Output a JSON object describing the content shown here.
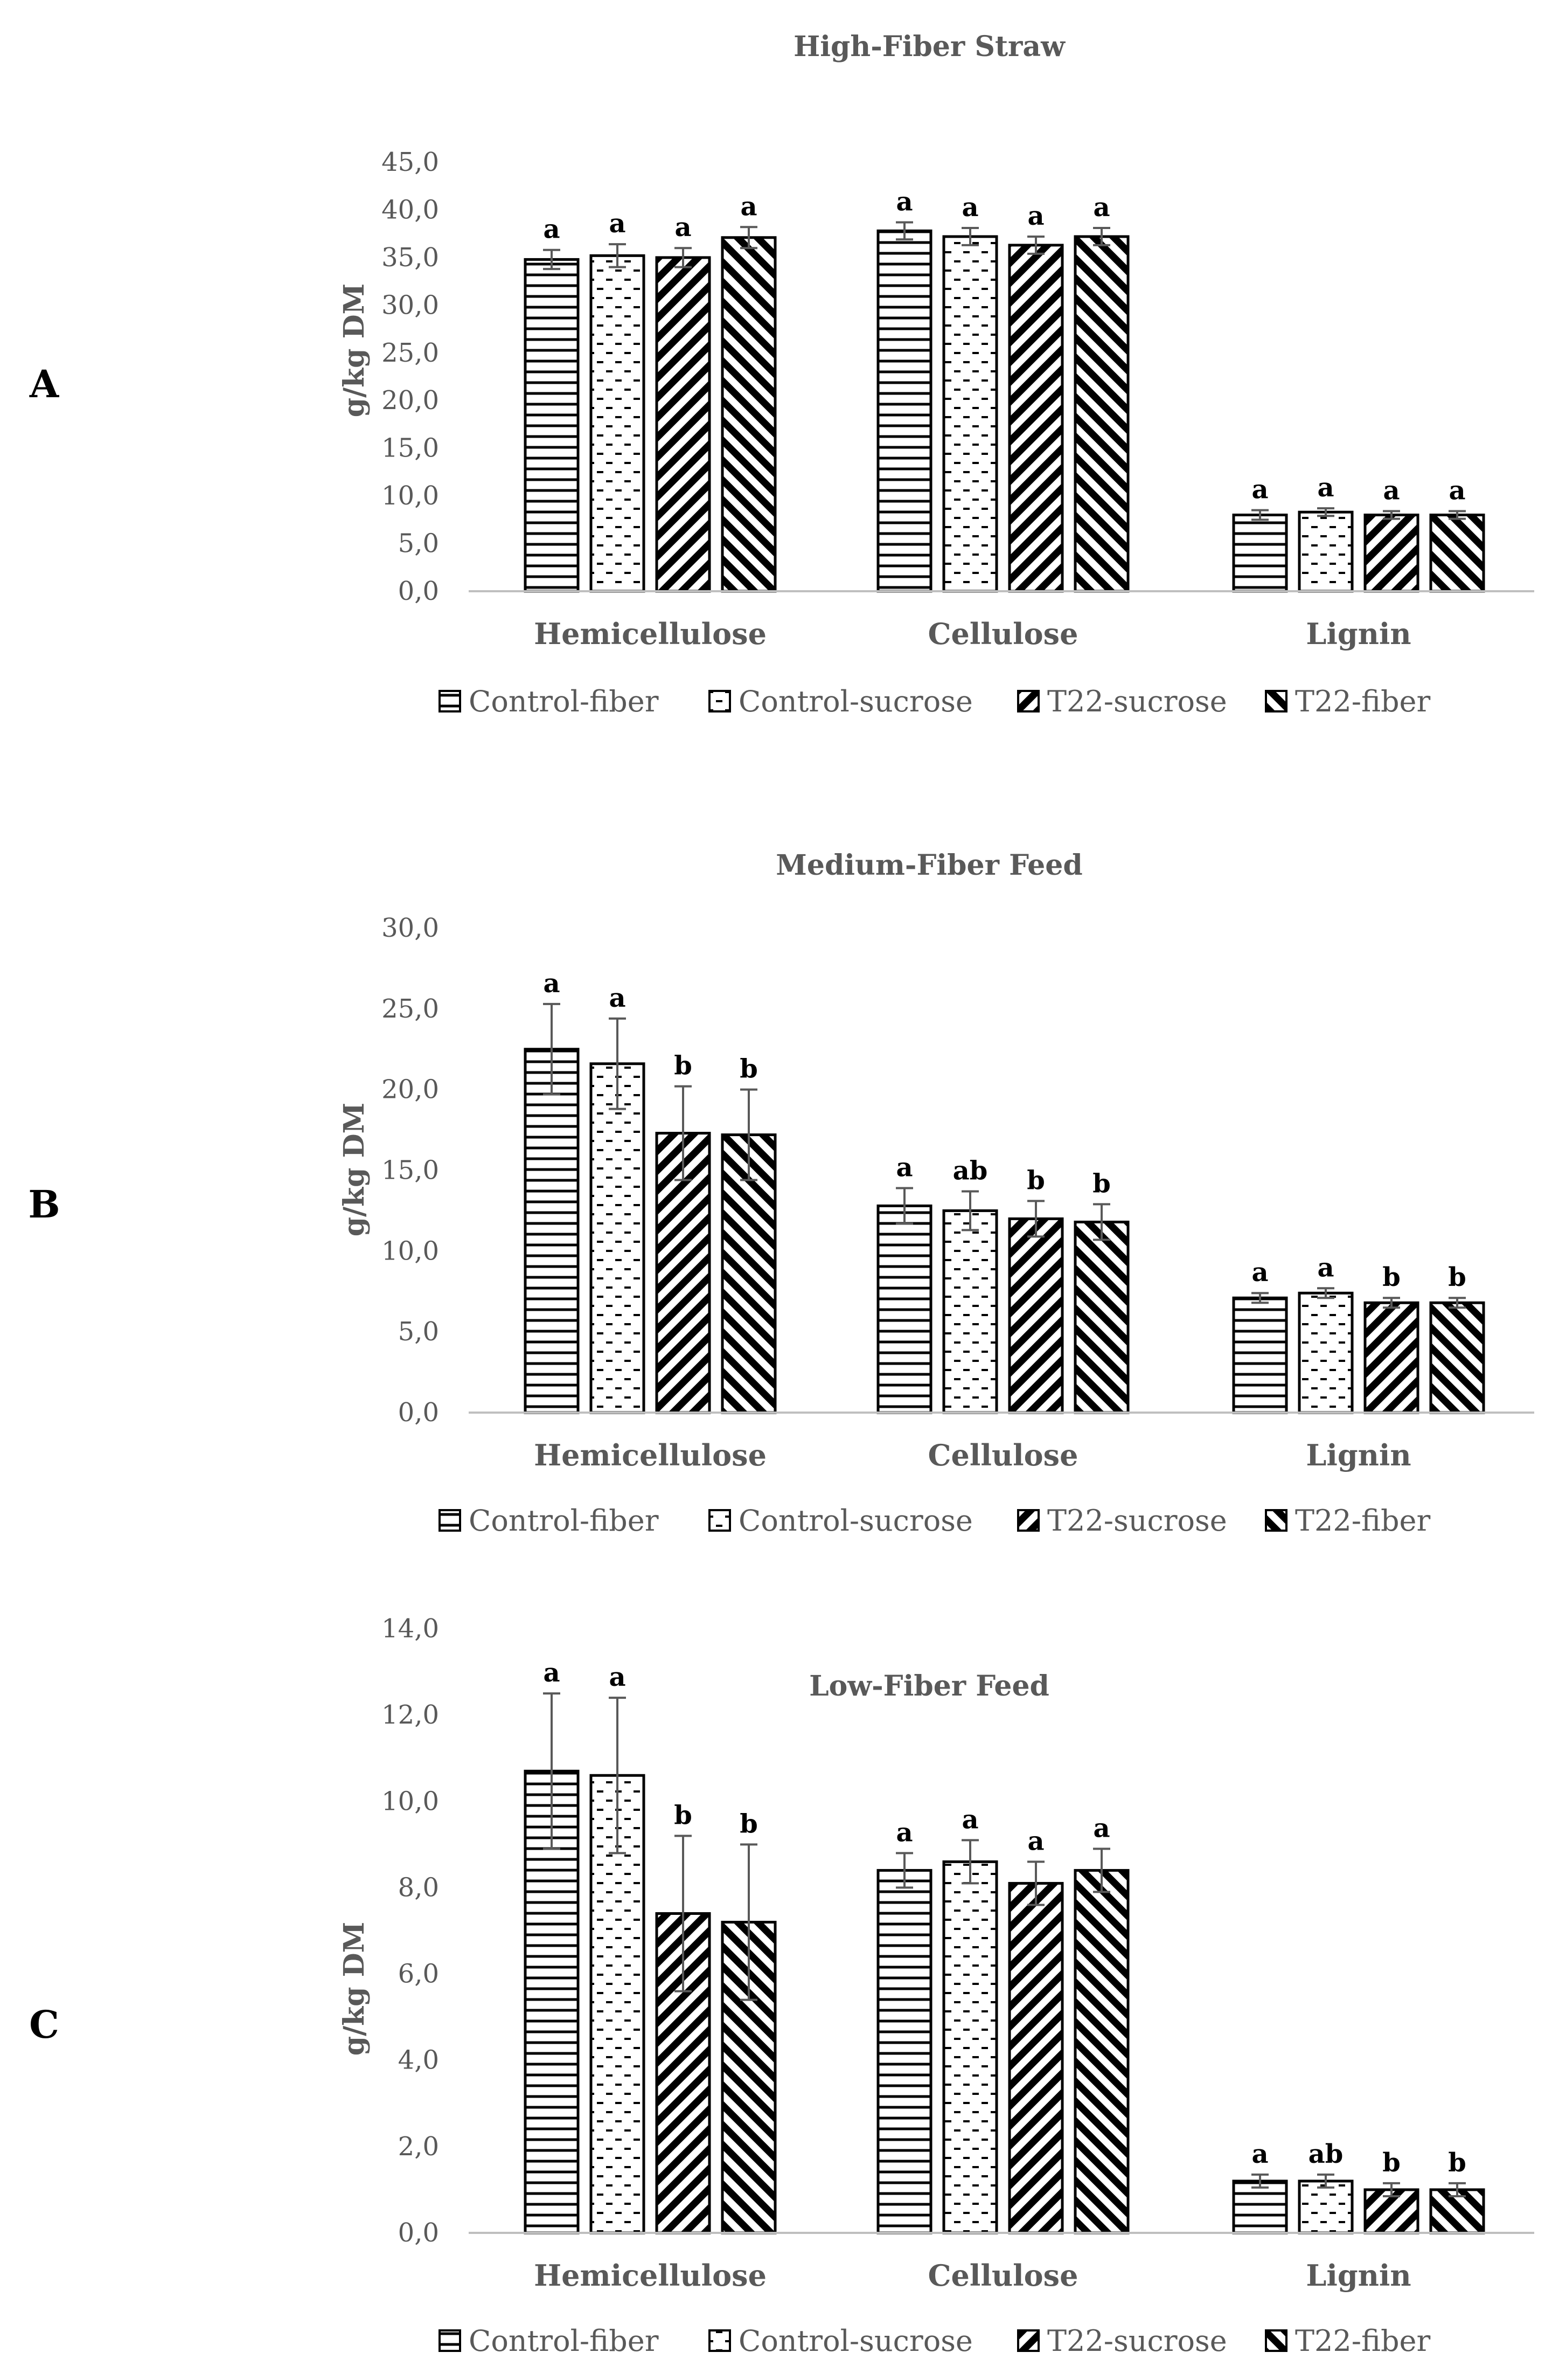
{
  "colors": {
    "text": "#595959",
    "axis": "#bfbfbf",
    "bar_stroke": "#000000",
    "error_bar": "#595959"
  },
  "chart_data": [
    {
      "type": "bar",
      "panel": "A",
      "title": "High-Fiber Straw",
      "ylabel": "g/kg DM",
      "ylim": [
        0,
        45
      ],
      "yticks": [
        "0,0",
        "5,0",
        "10,0",
        "15,0",
        "20,0",
        "25,0",
        "30,0",
        "35,0",
        "40,0",
        "45,0"
      ],
      "categories": [
        "Hemicellulose",
        "Cellulose",
        "Lignin"
      ],
      "legend_position": "bottom",
      "series": [
        {
          "name": "Control-fiber",
          "pattern": "horizontal",
          "values": [
            34.8,
            37.8,
            8.0
          ],
          "errors": [
            1.0,
            0.9,
            0.5
          ],
          "labels": [
            "a",
            "a",
            "a"
          ]
        },
        {
          "name": "Control-sucrose",
          "pattern": "dashed",
          "values": [
            35.2,
            37.2,
            8.3
          ],
          "errors": [
            1.2,
            0.9,
            0.4
          ],
          "labels": [
            "a",
            "a",
            "a"
          ]
        },
        {
          "name": "T22-sucrose",
          "pattern": "backslash",
          "values": [
            35.0,
            36.3,
            8.0
          ],
          "errors": [
            1.0,
            0.9,
            0.4
          ],
          "labels": [
            "a",
            "a",
            "a"
          ]
        },
        {
          "name": "T22-fiber",
          "pattern": "slash",
          "values": [
            37.1,
            37.2,
            8.0
          ],
          "errors": [
            1.1,
            0.9,
            0.4
          ],
          "labels": [
            "a",
            "a",
            "a"
          ]
        }
      ]
    },
    {
      "type": "bar",
      "panel": "B",
      "title": "Medium-Fiber Feed",
      "ylabel": "g/kg DM",
      "ylim": [
        0,
        30
      ],
      "yticks": [
        "0,0",
        "5,0",
        "10,0",
        "15,0",
        "20,0",
        "25,0",
        "30,0"
      ],
      "categories": [
        "Hemicellulose",
        "Cellulose",
        "Lignin"
      ],
      "legend_position": "bottom",
      "series": [
        {
          "name": "Control-fiber",
          "pattern": "horizontal",
          "values": [
            22.5,
            12.8,
            7.1
          ],
          "errors": [
            2.8,
            1.1,
            0.3
          ],
          "labels": [
            "a",
            "a",
            "a"
          ]
        },
        {
          "name": "Control-sucrose",
          "pattern": "dashed",
          "values": [
            21.6,
            12.5,
            7.4
          ],
          "errors": [
            2.8,
            1.2,
            0.3
          ],
          "labels": [
            "a",
            "ab",
            "a"
          ]
        },
        {
          "name": "T22-sucrose",
          "pattern": "backslash",
          "values": [
            17.3,
            12.0,
            6.8
          ],
          "errors": [
            2.9,
            1.1,
            0.3
          ],
          "labels": [
            "b",
            "b",
            "b"
          ]
        },
        {
          "name": "T22-fiber",
          "pattern": "slash",
          "values": [
            17.2,
            11.8,
            6.8
          ],
          "errors": [
            2.8,
            1.1,
            0.3
          ],
          "labels": [
            "b",
            "b",
            "b"
          ]
        }
      ]
    },
    {
      "type": "bar",
      "panel": "C",
      "title": "Low-Fiber Feed",
      "ylabel": "g/kg DM",
      "ylim": [
        0,
        14
      ],
      "yticks": [
        "0,0",
        "2,0",
        "4,0",
        "6,0",
        "8,0",
        "10,0",
        "12,0",
        "14,0"
      ],
      "categories": [
        "Hemicellulose",
        "Cellulose",
        "Lignin"
      ],
      "legend_position": "bottom",
      "series": [
        {
          "name": "Control-fiber",
          "pattern": "horizontal",
          "values": [
            10.7,
            8.4,
            1.2
          ],
          "errors": [
            1.8,
            0.4,
            0.15
          ],
          "labels": [
            "a",
            "a",
            "a"
          ]
        },
        {
          "name": "Control-sucrose",
          "pattern": "dashed",
          "values": [
            10.6,
            8.6,
            1.2
          ],
          "errors": [
            1.8,
            0.5,
            0.15
          ],
          "labels": [
            "a",
            "a",
            "ab"
          ]
        },
        {
          "name": "T22-sucrose",
          "pattern": "backslash",
          "values": [
            7.4,
            8.1,
            1.0
          ],
          "errors": [
            1.8,
            0.5,
            0.15
          ],
          "labels": [
            "b",
            "a",
            "b"
          ]
        },
        {
          "name": "T22-fiber",
          "pattern": "slash",
          "values": [
            7.2,
            8.4,
            1.0
          ],
          "errors": [
            1.8,
            0.5,
            0.15
          ],
          "labels": [
            "b",
            "a",
            "b"
          ]
        }
      ]
    }
  ]
}
